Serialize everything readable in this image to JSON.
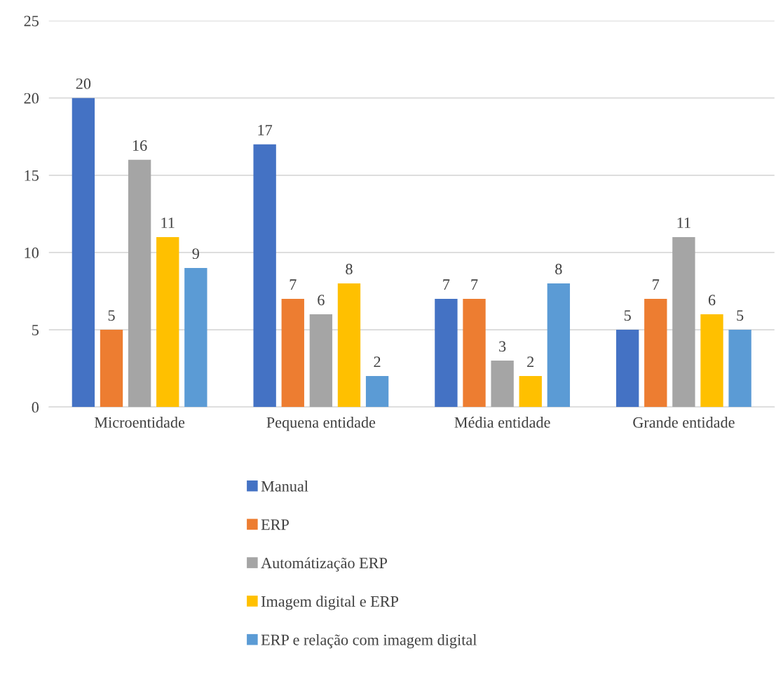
{
  "chart_data": {
    "type": "bar",
    "categories": [
      "Microentidade",
      "Pequena entidade",
      "Média entidade",
      "Grande entidade"
    ],
    "series": [
      {
        "name": "Manual",
        "color": "#4472c4",
        "values": [
          20,
          17,
          7,
          5
        ]
      },
      {
        "name": "ERP",
        "color": "#ed7d31",
        "values": [
          5,
          7,
          7,
          7
        ]
      },
      {
        "name": "Automátização ERP",
        "color": "#a5a5a5",
        "values": [
          16,
          6,
          3,
          11
        ]
      },
      {
        "name": "Imagem digital e ERP",
        "color": "#ffc000",
        "values": [
          11,
          8,
          2,
          6
        ]
      },
      {
        "name": "ERP e relação com imagem digital",
        "color": "#5b9bd5",
        "values": [
          9,
          2,
          8,
          5
        ]
      }
    ],
    "ylim": [
      0,
      25
    ],
    "yticks": [
      0,
      5,
      10,
      15,
      20,
      25
    ],
    "grid": "y",
    "legend": "bottom",
    "data_labels": true
  }
}
